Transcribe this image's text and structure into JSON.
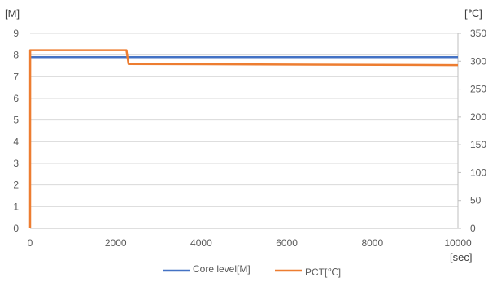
{
  "chart_data": {
    "type": "line",
    "x_unit": "[sec]",
    "y_left_unit": "[M]",
    "y_right_unit": "[℃]",
    "xlim": [
      0,
      10000
    ],
    "ylim_left": [
      0,
      9
    ],
    "ylim_right": [
      0,
      350
    ],
    "x_ticks": [
      0,
      2000,
      4000,
      6000,
      8000,
      10000
    ],
    "y_left_ticks": [
      0,
      1,
      2,
      3,
      4,
      5,
      6,
      7,
      8,
      9
    ],
    "y_right_ticks": [
      0,
      50,
      100,
      150,
      200,
      250,
      300,
      350
    ],
    "grid": "horizontal",
    "legend_position": "bottom",
    "series": [
      {
        "name": "Core level[M]",
        "axis": "left",
        "color": "#4472C4",
        "points": [
          [
            0,
            7.9
          ],
          [
            10000,
            7.9
          ]
        ]
      },
      {
        "name": "PCT[℃]",
        "axis": "right",
        "color": "#ED7D31",
        "points": [
          [
            0,
            0
          ],
          [
            1,
            320
          ],
          [
            2250,
            320
          ],
          [
            2300,
            295
          ],
          [
            10000,
            293
          ]
        ]
      }
    ]
  }
}
